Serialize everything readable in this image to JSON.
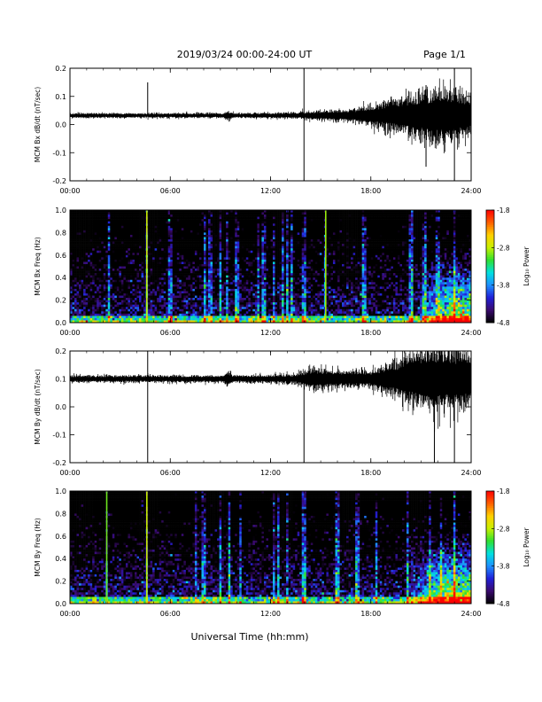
{
  "header": {
    "title": "2019/03/24  00:00-24:00 UT",
    "page": "Page 1/1"
  },
  "footer": {
    "xlabel": "Universal Time (hh:mm)"
  },
  "colorbar": {
    "label": "Log₁₀ Power",
    "ticks": [
      "-1.8",
      "-2.8",
      "-3.8",
      "-4.8"
    ],
    "range": [
      -4.8,
      -1.8
    ],
    "colormap": [
      "#000000",
      "#3a0a6e",
      "#2020d8",
      "#1e90ff",
      "#00e0e0",
      "#30e030",
      "#c8f000",
      "#ffd000",
      "#ff6000",
      "#ff0000"
    ]
  },
  "chart_data": [
    {
      "type": "line",
      "id": "bx_timeseries",
      "ylabel": "MCM Bx dB/dt (nT/sec)",
      "xlim": [
        0,
        24
      ],
      "ylim": [
        -0.2,
        0.2
      ],
      "x_ticks": [
        "00:00",
        "06:00",
        "12:00",
        "18:00",
        "24:00"
      ],
      "y_ticks": [
        "0.2",
        "0.1",
        "0.0",
        "-0.1",
        "-0.2"
      ],
      "baseline": 0.032,
      "noise_profile": [
        {
          "t": 0,
          "amp": 0.004
        },
        {
          "t": 9.2,
          "amp": 0.004
        },
        {
          "t": 9.4,
          "amp": 0.01
        },
        {
          "t": 9.8,
          "amp": 0.004
        },
        {
          "t": 13.5,
          "amp": 0.005
        },
        {
          "t": 15,
          "amp": 0.008
        },
        {
          "t": 17,
          "amp": 0.012
        },
        {
          "t": 19,
          "amp": 0.025
        },
        {
          "t": 21,
          "amp": 0.04
        },
        {
          "t": 22.5,
          "amp": 0.05
        },
        {
          "t": 24,
          "amp": 0.035
        }
      ],
      "spikes": [
        {
          "t": 4.65,
          "min": 0.028,
          "max": 0.15
        },
        {
          "t": 14.0,
          "min": -0.2,
          "max": 0.2
        },
        {
          "t": 21.3,
          "min": -0.15,
          "max": 0.14
        },
        {
          "t": 23.0,
          "min": -0.2,
          "max": 0.2
        },
        {
          "t": 19.85,
          "min": -0.02,
          "max": 0.1
        }
      ]
    },
    {
      "type": "heatmap",
      "id": "bx_spectrogram",
      "ylabel": "MCM Bx Freq (Hz)",
      "xlim": [
        0,
        24
      ],
      "ylim": [
        0,
        1.0
      ],
      "x_ticks": [
        "00:00",
        "06:00",
        "12:00",
        "18:00",
        "24:00"
      ],
      "y_ticks": [
        "1.0",
        "0.8",
        "0.6",
        "0.4",
        "0.2",
        "0.0"
      ],
      "zlim": [
        -4.8,
        -1.8
      ],
      "activity_onset_hours": 20.5,
      "broadband_lines_hours": [
        2.3,
        4.6,
        6.0,
        8.1,
        8.4,
        9.0,
        9.4,
        10.0,
        11.3,
        11.6,
        12.2,
        12.7,
        13.0,
        13.3,
        14.0,
        15.3,
        17.6,
        20.4,
        21.2,
        22.0,
        23.0
      ],
      "bright_lines": [
        {
          "t": 4.6,
          "level": -2.8
        },
        {
          "t": 15.3,
          "level": -2.9
        }
      ]
    },
    {
      "type": "line",
      "id": "by_timeseries",
      "ylabel": "MCM By dB/dt (nT/sec)",
      "xlim": [
        0,
        24
      ],
      "ylim": [
        -0.2,
        0.2
      ],
      "x_ticks": [
        "00:00",
        "06:00",
        "12:00",
        "18:00",
        "24:00"
      ],
      "y_ticks": [
        "0.2",
        "0.1",
        "0.0",
        "-0.1",
        "-0.2"
      ],
      "baseline": 0.1,
      "noise_profile": [
        {
          "t": 0,
          "amp": 0.006
        },
        {
          "t": 9.2,
          "amp": 0.006
        },
        {
          "t": 9.4,
          "amp": 0.015
        },
        {
          "t": 9.8,
          "amp": 0.006
        },
        {
          "t": 13.5,
          "amp": 0.008
        },
        {
          "t": 14.5,
          "amp": 0.02
        },
        {
          "t": 16,
          "amp": 0.015
        },
        {
          "t": 18,
          "amp": 0.015
        },
        {
          "t": 19.8,
          "amp": 0.035
        },
        {
          "t": 21.5,
          "amp": 0.06
        },
        {
          "t": 24,
          "amp": 0.05
        }
      ],
      "spikes": [
        {
          "t": 4.65,
          "min": -0.2,
          "max": 0.2
        },
        {
          "t": 14.0,
          "min": -0.2,
          "max": 0.11
        },
        {
          "t": 21.8,
          "min": -0.2,
          "max": 0.2
        },
        {
          "t": 23.0,
          "min": -0.2,
          "max": 0.2
        },
        {
          "t": 19.9,
          "min": 0.0,
          "max": 0.15
        }
      ]
    },
    {
      "type": "heatmap",
      "id": "by_spectrogram",
      "ylabel": "MCM By Freq (Hz)",
      "xlim": [
        0,
        24
      ],
      "ylim": [
        0,
        1.0
      ],
      "x_ticks": [
        "00:00",
        "06:00",
        "12:00",
        "18:00",
        "24:00"
      ],
      "y_ticks": [
        "1.0",
        "0.8",
        "0.6",
        "0.4",
        "0.2",
        "0.0"
      ],
      "zlim": [
        -4.8,
        -1.8
      ],
      "activity_onset_hours": 20.0,
      "broadband_lines_hours": [
        2.2,
        4.6,
        7.5,
        8.0,
        9.0,
        9.5,
        10.2,
        12.2,
        12.5,
        13.0,
        14.0,
        16.0,
        17.2,
        18.3,
        20.2,
        21.5,
        22.2,
        23.0
      ],
      "bright_lines": [
        {
          "t": 2.2,
          "level": -3.0
        },
        {
          "t": 4.6,
          "level": -2.8
        }
      ]
    }
  ]
}
